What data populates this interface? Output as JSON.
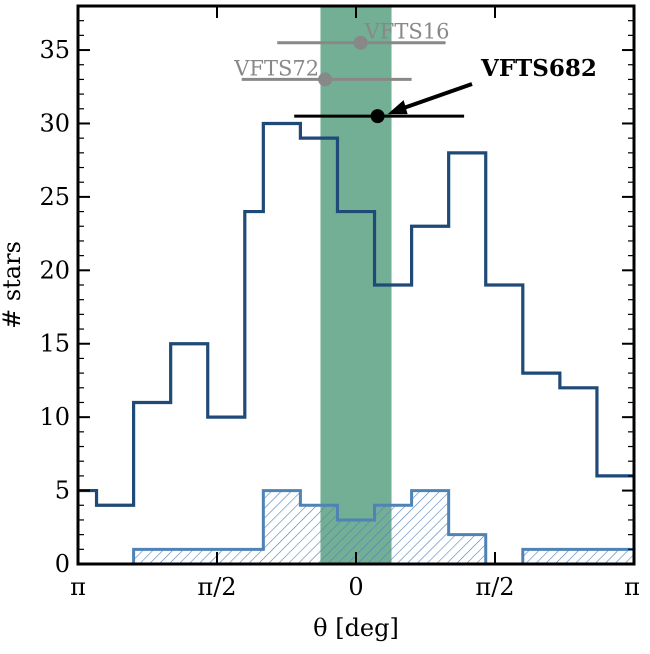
{
  "chart_data": {
    "type": "histogram",
    "xlabel": "θ [deg]",
    "ylabel": "# stars",
    "xlim": [
      -180,
      180
    ],
    "ylim": [
      0,
      38
    ],
    "x_ticks": [
      {
        "value": -180,
        "label": "π"
      },
      {
        "value": -90,
        "label": "π/2"
      },
      {
        "value": 0,
        "label": "0"
      },
      {
        "value": 90,
        "label": "π/2"
      },
      {
        "value": 180,
        "label": "π"
      }
    ],
    "y_ticks": [
      0,
      5,
      10,
      15,
      20,
      25,
      30,
      35
    ],
    "bin_edges": [
      -180,
      -168,
      -144,
      -120,
      -96,
      -72,
      -60,
      -36,
      -12,
      12,
      36,
      60,
      84,
      108,
      132,
      156,
      180
    ],
    "series": [
      {
        "style": "outline",
        "color": "#1f4a78",
        "values": [
          5,
          4,
          11,
          15,
          10,
          24,
          30,
          29,
          24,
          19,
          23,
          28,
          19,
          13,
          12,
          6
        ]
      },
      {
        "style": "hatched",
        "color": "#4f82b5",
        "values": [
          0,
          0,
          1,
          1,
          1,
          1,
          5,
          4,
          3,
          4,
          5,
          2,
          0,
          1,
          1,
          1
        ]
      }
    ],
    "band": {
      "x_from": -23,
      "x_to": 23,
      "color": "#5aa182"
    },
    "stars": [
      {
        "name": "VFTS16",
        "x": 3,
        "y": 35.5,
        "err_low": -51,
        "err_high": 58,
        "color": "#888888"
      },
      {
        "name": "VFTS72",
        "x": -20,
        "y": 33,
        "err_low": -74,
        "err_high": 36,
        "color": "#888888"
      },
      {
        "name": "VFTS682",
        "x": 14,
        "y": 30.5,
        "err_low": -40,
        "err_high": 70,
        "color": "#000000",
        "bold": true
      }
    ]
  }
}
